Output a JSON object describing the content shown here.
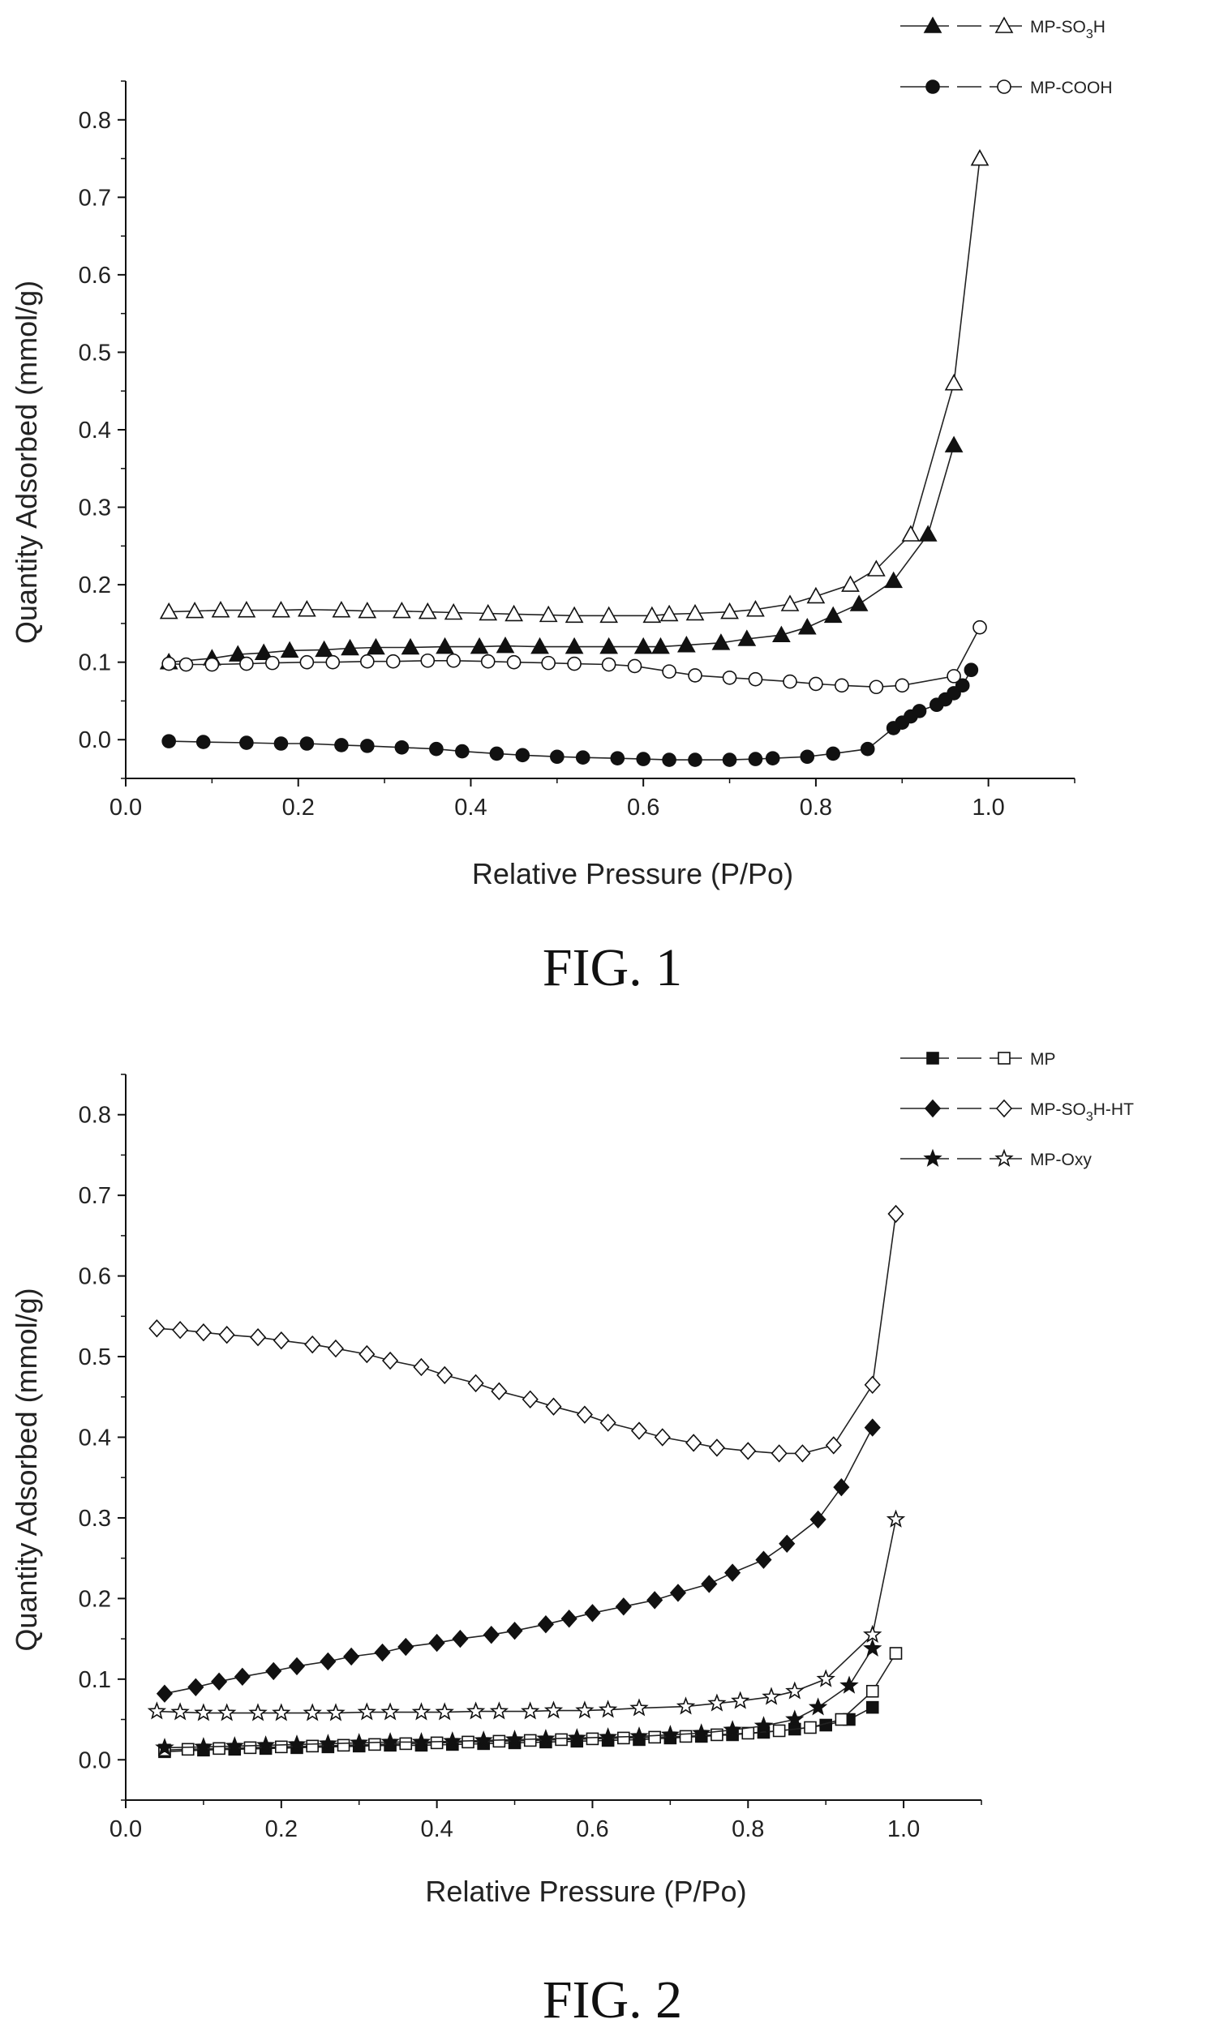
{
  "chart_data": [
    {
      "type": "scatter",
      "caption": "FIG. 1",
      "xlabel": "Relative Pressure (P/Po)",
      "ylabel": "Quantity Adsorbed (mmol/g)",
      "xlim": [
        0.0,
        1.1
      ],
      "ylim": [
        -0.05,
        0.85
      ],
      "xticks": [
        "0.0",
        "0.2",
        "0.4",
        "0.6",
        "0.8",
        "1.0"
      ],
      "yticks": [
        "0.0",
        "0.1",
        "0.2",
        "0.3",
        "0.4",
        "0.5",
        "0.6",
        "0.7",
        "0.8"
      ],
      "xtick_values": [
        0.0,
        0.2,
        0.4,
        0.6,
        0.8,
        1.0
      ],
      "ytick_values": [
        0.0,
        0.1,
        0.2,
        0.3,
        0.4,
        0.5,
        0.6,
        0.7,
        0.8
      ],
      "legend_position": "top-right",
      "series": [
        {
          "name": "MP-SO3H",
          "name_main": "MP-SO",
          "name_sub": "3",
          "name_tail": "H",
          "adsorption_marker": "filled-triangle",
          "desorption_marker": "open-triangle",
          "adsorption": {
            "x": [
              0.05,
              0.1,
              0.13,
              0.16,
              0.19,
              0.23,
              0.26,
              0.29,
              0.33,
              0.37,
              0.41,
              0.44,
              0.48,
              0.52,
              0.56,
              0.6,
              0.62,
              0.65,
              0.69,
              0.72,
              0.76,
              0.79,
              0.82,
              0.85,
              0.89,
              0.93,
              0.96
            ],
            "y": [
              0.1,
              0.105,
              0.11,
              0.112,
              0.115,
              0.116,
              0.118,
              0.119,
              0.119,
              0.12,
              0.12,
              0.121,
              0.12,
              0.12,
              0.12,
              0.12,
              0.12,
              0.122,
              0.125,
              0.13,
              0.135,
              0.145,
              0.16,
              0.175,
              0.205,
              0.265,
              0.38
            ]
          },
          "desorption": {
            "x": [
              0.05,
              0.08,
              0.11,
              0.14,
              0.18,
              0.21,
              0.25,
              0.28,
              0.32,
              0.35,
              0.38,
              0.42,
              0.45,
              0.49,
              0.52,
              0.56,
              0.61,
              0.63,
              0.66,
              0.7,
              0.73,
              0.77,
              0.8,
              0.84,
              0.87,
              0.91,
              0.96,
              0.99
            ],
            "y": [
              0.165,
              0.166,
              0.167,
              0.167,
              0.167,
              0.168,
              0.167,
              0.166,
              0.166,
              0.165,
              0.164,
              0.163,
              0.162,
              0.161,
              0.16,
              0.16,
              0.16,
              0.162,
              0.163,
              0.165,
              0.168,
              0.175,
              0.185,
              0.2,
              0.22,
              0.265,
              0.46,
              0.75
            ]
          }
        },
        {
          "name": "MP-COOH",
          "adsorption_marker": "filled-circle",
          "desorption_marker": "open-circle",
          "adsorption": {
            "x": [
              0.05,
              0.09,
              0.14,
              0.18,
              0.21,
              0.25,
              0.28,
              0.32,
              0.36,
              0.39,
              0.43,
              0.46,
              0.5,
              0.53,
              0.57,
              0.6,
              0.63,
              0.66,
              0.7,
              0.73,
              0.75,
              0.79,
              0.82,
              0.86,
              0.89,
              0.9,
              0.91,
              0.92,
              0.94,
              0.95,
              0.96,
              0.97,
              0.98
            ],
            "y": [
              -0.002,
              -0.003,
              -0.004,
              -0.005,
              -0.005,
              -0.007,
              -0.008,
              -0.01,
              -0.012,
              -0.015,
              -0.018,
              -0.02,
              -0.022,
              -0.023,
              -0.024,
              -0.025,
              -0.026,
              -0.026,
              -0.026,
              -0.025,
              -0.024,
              -0.022,
              -0.018,
              -0.012,
              0.015,
              0.022,
              0.03,
              0.037,
              0.045,
              0.052,
              0.06,
              0.07,
              0.09
            ]
          },
          "desorption": {
            "x": [
              0.05,
              0.07,
              0.1,
              0.14,
              0.17,
              0.21,
              0.24,
              0.28,
              0.31,
              0.35,
              0.38,
              0.42,
              0.45,
              0.49,
              0.52,
              0.56,
              0.59,
              0.63,
              0.66,
              0.7,
              0.73,
              0.77,
              0.8,
              0.83,
              0.87,
              0.9,
              0.96,
              0.99
            ],
            "y": [
              0.098,
              0.097,
              0.097,
              0.098,
              0.099,
              0.1,
              0.1,
              0.101,
              0.101,
              0.102,
              0.102,
              0.101,
              0.1,
              0.099,
              0.098,
              0.097,
              0.095,
              0.088,
              0.083,
              0.08,
              0.078,
              0.075,
              0.072,
              0.07,
              0.068,
              0.07,
              0.082,
              0.145
            ]
          }
        }
      ]
    },
    {
      "type": "scatter",
      "caption": "FIG. 2",
      "xlabel": "Relative Pressure (P/Po)",
      "ylabel": "Quantity Adsorbed (mmol/g)",
      "xlim": [
        0.0,
        1.1
      ],
      "ylim": [
        -0.05,
        0.85
      ],
      "xticks": [
        "0.0",
        "0.2",
        "0.4",
        "0.6",
        "0.8",
        "1.0"
      ],
      "yticks": [
        "0.0",
        "0.1",
        "0.2",
        "0.3",
        "0.4",
        "0.5",
        "0.6",
        "0.7",
        "0.8"
      ],
      "xtick_values": [
        0.0,
        0.2,
        0.4,
        0.6,
        0.8,
        1.0
      ],
      "ytick_values": [
        0.0,
        0.1,
        0.2,
        0.3,
        0.4,
        0.5,
        0.6,
        0.7,
        0.8
      ],
      "legend_position": "top-right",
      "series": [
        {
          "name": "MP",
          "adsorption_marker": "filled-square",
          "desorption_marker": "open-square",
          "adsorption": {
            "x": [
              0.05,
              0.1,
              0.14,
              0.18,
              0.22,
              0.26,
              0.3,
              0.34,
              0.38,
              0.42,
              0.46,
              0.5,
              0.54,
              0.58,
              0.62,
              0.66,
              0.7,
              0.74,
              0.78,
              0.82,
              0.86,
              0.9,
              0.93,
              0.96
            ],
            "y": [
              0.01,
              0.012,
              0.013,
              0.014,
              0.015,
              0.016,
              0.017,
              0.018,
              0.018,
              0.019,
              0.02,
              0.021,
              0.022,
              0.023,
              0.024,
              0.025,
              0.027,
              0.029,
              0.031,
              0.034,
              0.038,
              0.043,
              0.05,
              0.065
            ]
          },
          "desorption": {
            "x": [
              0.05,
              0.08,
              0.12,
              0.16,
              0.2,
              0.24,
              0.28,
              0.32,
              0.36,
              0.4,
              0.44,
              0.48,
              0.52,
              0.56,
              0.6,
              0.64,
              0.68,
              0.72,
              0.76,
              0.8,
              0.84,
              0.88,
              0.92,
              0.96,
              0.99
            ],
            "y": [
              0.012,
              0.013,
              0.014,
              0.015,
              0.016,
              0.017,
              0.018,
              0.019,
              0.02,
              0.021,
              0.022,
              0.023,
              0.024,
              0.025,
              0.026,
              0.027,
              0.028,
              0.029,
              0.031,
              0.033,
              0.036,
              0.04,
              0.05,
              0.085,
              0.132
            ]
          }
        },
        {
          "name": "MP-SO3H-HT",
          "name_main": "MP-SO",
          "name_sub": "3",
          "name_tail": "H-HT",
          "adsorption_marker": "filled-diamond",
          "desorption_marker": "open-diamond",
          "adsorption": {
            "x": [
              0.05,
              0.09,
              0.12,
              0.15,
              0.19,
              0.22,
              0.26,
              0.29,
              0.33,
              0.36,
              0.4,
              0.43,
              0.47,
              0.5,
              0.54,
              0.57,
              0.6,
              0.64,
              0.68,
              0.71,
              0.75,
              0.78,
              0.82,
              0.85,
              0.89,
              0.92,
              0.96
            ],
            "y": [
              0.082,
              0.09,
              0.097,
              0.103,
              0.11,
              0.116,
              0.122,
              0.128,
              0.133,
              0.14,
              0.145,
              0.15,
              0.155,
              0.16,
              0.168,
              0.175,
              0.182,
              0.19,
              0.198,
              0.207,
              0.218,
              0.232,
              0.248,
              0.268,
              0.298,
              0.338,
              0.412
            ]
          },
          "desorption": {
            "x": [
              0.04,
              0.07,
              0.1,
              0.13,
              0.17,
              0.2,
              0.24,
              0.27,
              0.31,
              0.34,
              0.38,
              0.41,
              0.45,
              0.48,
              0.52,
              0.55,
              0.59,
              0.62,
              0.66,
              0.69,
              0.73,
              0.76,
              0.8,
              0.84,
              0.87,
              0.91,
              0.96,
              0.99
            ],
            "y": [
              0.535,
              0.533,
              0.53,
              0.527,
              0.524,
              0.52,
              0.515,
              0.51,
              0.503,
              0.495,
              0.487,
              0.477,
              0.467,
              0.457,
              0.447,
              0.438,
              0.428,
              0.418,
              0.408,
              0.4,
              0.393,
              0.387,
              0.383,
              0.38,
              0.38,
              0.39,
              0.465,
              0.677
            ]
          }
        },
        {
          "name": "MP-Oxy",
          "adsorption_marker": "filled-star",
          "desorption_marker": "open-star",
          "adsorption": {
            "x": [
              0.05,
              0.1,
              0.14,
              0.18,
              0.22,
              0.26,
              0.3,
              0.34,
              0.38,
              0.42,
              0.46,
              0.5,
              0.54,
              0.58,
              0.62,
              0.66,
              0.7,
              0.74,
              0.78,
              0.82,
              0.86,
              0.89,
              0.93,
              0.96
            ],
            "y": [
              0.015,
              0.016,
              0.017,
              0.018,
              0.019,
              0.02,
              0.021,
              0.022,
              0.022,
              0.023,
              0.024,
              0.025,
              0.026,
              0.027,
              0.028,
              0.029,
              0.031,
              0.033,
              0.037,
              0.042,
              0.05,
              0.065,
              0.092,
              0.138
            ]
          },
          "desorption": {
            "x": [
              0.04,
              0.07,
              0.1,
              0.13,
              0.17,
              0.2,
              0.24,
              0.27,
              0.31,
              0.34,
              0.38,
              0.41,
              0.45,
              0.48,
              0.52,
              0.55,
              0.59,
              0.62,
              0.66,
              0.72,
              0.76,
              0.79,
              0.83,
              0.86,
              0.9,
              0.96,
              0.99
            ],
            "y": [
              0.06,
              0.059,
              0.058,
              0.058,
              0.058,
              0.058,
              0.058,
              0.058,
              0.059,
              0.059,
              0.059,
              0.059,
              0.06,
              0.06,
              0.06,
              0.061,
              0.061,
              0.062,
              0.064,
              0.066,
              0.07,
              0.073,
              0.078,
              0.085,
              0.1,
              0.155,
              0.298
            ]
          }
        }
      ]
    }
  ]
}
